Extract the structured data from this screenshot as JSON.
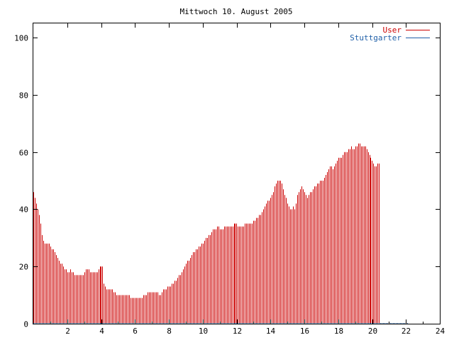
{
  "chart_data": {
    "type": "bar",
    "title": "Mittwoch 10. August 2005",
    "xlabel": "",
    "ylabel": "",
    "xlim": [
      0,
      24
    ],
    "ylim": [
      0,
      105
    ],
    "x_ticks": [
      2,
      4,
      6,
      8,
      10,
      12,
      14,
      16,
      18,
      20,
      22,
      24
    ],
    "y_ticks": [
      0,
      20,
      40,
      60,
      80,
      100
    ],
    "grid": false,
    "legend_position": "top-right",
    "colors": {
      "user": "#cc0000",
      "stuttgarter": "#1f5fa8",
      "axis": "#000000"
    },
    "series": [
      {
        "name": "User",
        "interval_hours": 0.08333,
        "values": [
          46,
          44,
          42,
          40,
          38,
          35,
          31,
          29,
          28,
          28,
          28,
          28,
          27,
          26,
          26,
          25,
          24,
          23,
          22,
          21,
          21,
          20,
          19,
          19,
          18,
          18,
          19,
          18,
          18,
          17,
          17,
          17,
          17,
          17,
          17,
          17,
          18,
          19,
          19,
          19,
          18,
          18,
          18,
          18,
          18,
          18,
          19,
          20,
          20,
          20,
          14,
          13,
          12,
          12,
          12,
          12,
          12,
          11,
          11,
          10,
          10,
          10,
          10,
          10,
          10,
          10,
          10,
          10,
          10,
          9,
          9,
          9,
          9,
          9,
          9,
          9,
          9,
          9,
          10,
          10,
          10,
          11,
          11,
          11,
          11,
          11,
          11,
          11,
          11,
          10,
          10,
          11,
          12,
          12,
          12,
          13,
          13,
          13,
          14,
          14,
          15,
          15,
          16,
          17,
          17,
          18,
          19,
          20,
          21,
          22,
          22,
          23,
          24,
          25,
          25,
          26,
          26,
          27,
          27,
          28,
          28,
          29,
          30,
          30,
          31,
          31,
          32,
          33,
          33,
          33,
          34,
          34,
          33,
          33,
          33,
          34,
          34,
          34,
          34,
          34,
          34,
          34,
          35,
          35,
          35,
          34,
          34,
          34,
          34,
          34,
          35,
          35,
          35,
          35,
          35,
          35,
          36,
          36,
          37,
          37,
          38,
          38,
          39,
          40,
          41,
          42,
          43,
          43,
          44,
          45,
          46,
          48,
          49,
          50,
          50,
          50,
          49,
          47,
          45,
          44,
          42,
          41,
          40,
          40,
          41,
          40,
          42,
          45,
          46,
          47,
          48,
          47,
          46,
          45,
          44,
          45,
          46,
          46,
          47,
          48,
          48,
          49,
          49,
          50,
          50,
          50,
          51,
          52,
          53,
          54,
          55,
          55,
          54,
          55,
          56,
          57,
          58,
          58,
          58,
          59,
          60,
          60,
          60,
          61,
          61,
          62,
          61,
          61,
          62,
          62,
          63,
          63,
          62,
          62,
          62,
          62,
          61,
          60,
          59,
          58,
          57,
          56,
          55,
          55,
          56,
          56
        ]
      },
      {
        "name": "Stuttgarter",
        "values": [
          0,
          0,
          0,
          0,
          0,
          0,
          0,
          0,
          0,
          0,
          0,
          0,
          0,
          0,
          0,
          0,
          0,
          0,
          0,
          0,
          0,
          0,
          0,
          0,
          0,
          0,
          0,
          0,
          0,
          0,
          0,
          0,
          0,
          0,
          0,
          0,
          0,
          0,
          0,
          0,
          0,
          0,
          0,
          0,
          0,
          0,
          0,
          0,
          0,
          0,
          0,
          0,
          0,
          0,
          0,
          0,
          0,
          0,
          0,
          0,
          0,
          0,
          0,
          0,
          0,
          0,
          0,
          0,
          0,
          0,
          0,
          0,
          0,
          0,
          0,
          0,
          0,
          0,
          0,
          0,
          0,
          0,
          0,
          0,
          0,
          0,
          0,
          0,
          0,
          0,
          0,
          0,
          0,
          0,
          0,
          0,
          0,
          0,
          0,
          0,
          0,
          0,
          0,
          0,
          0,
          0,
          0,
          0,
          0,
          0,
          0,
          0,
          0,
          0,
          0,
          0,
          0,
          0,
          0,
          0,
          0,
          0,
          0,
          0,
          0,
          0,
          0,
          0,
          0,
          0,
          0,
          0,
          0,
          0,
          0,
          0,
          0,
          0,
          0,
          0,
          0,
          0,
          0,
          0,
          0,
          0,
          0,
          0,
          0,
          0,
          0,
          0,
          0,
          0,
          0,
          0,
          0,
          0,
          0,
          0,
          0,
          0,
          0,
          0,
          0,
          0,
          0,
          0,
          0,
          0,
          0,
          0,
          0,
          0,
          0,
          0,
          0,
          0,
          0,
          0,
          0,
          0,
          0,
          0,
          0,
          0,
          0,
          0,
          0,
          0,
          0,
          0,
          0,
          0,
          0,
          0,
          0,
          0,
          0,
          0,
          0,
          0,
          0,
          0,
          0,
          0,
          0,
          0,
          0,
          0,
          0,
          0,
          0,
          0,
          0,
          0,
          0,
          0,
          0,
          0,
          0,
          0,
          0,
          0,
          0,
          0,
          0,
          0,
          0,
          0,
          0,
          0,
          0,
          0,
          0,
          0,
          0,
          0,
          0,
          0,
          0,
          0,
          0,
          0,
          0,
          0,
          0,
          0,
          0,
          0,
          0,
          0,
          0,
          0,
          0,
          0,
          0,
          0,
          0,
          0,
          0,
          0,
          0,
          0,
          0,
          0
        ]
      }
    ]
  }
}
